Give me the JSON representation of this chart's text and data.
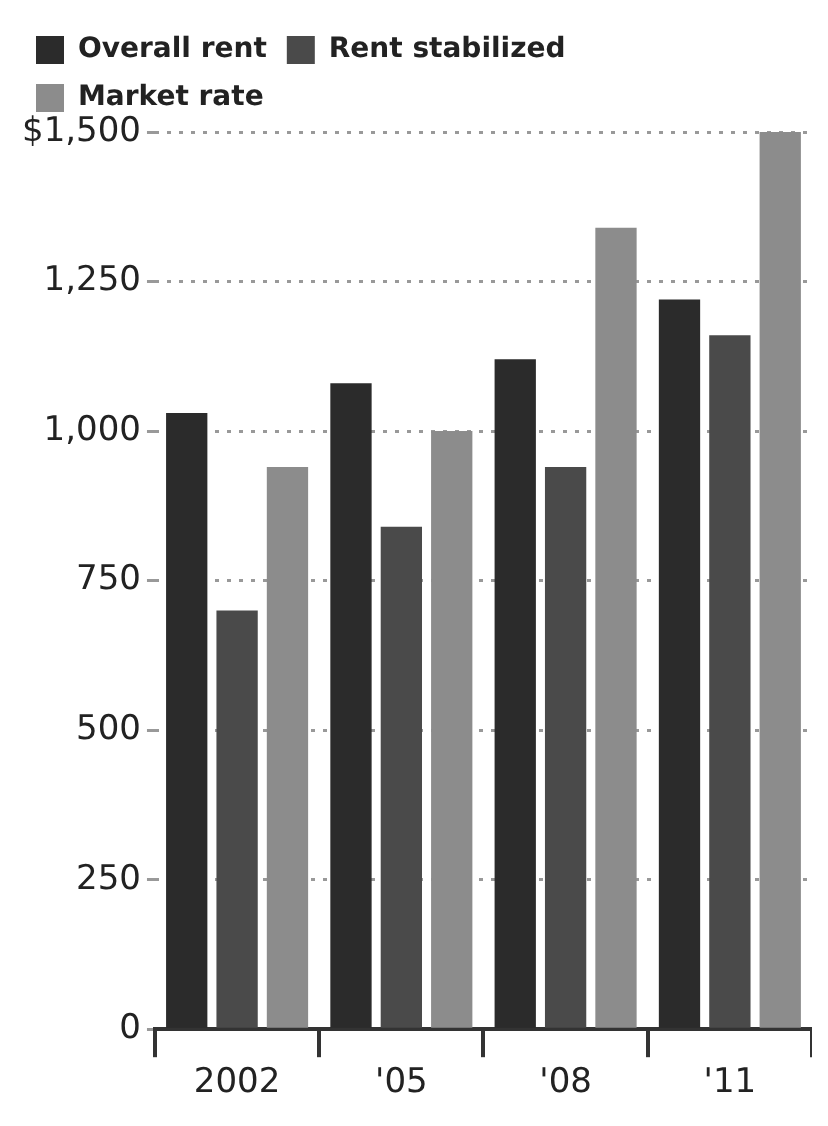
{
  "chart_data": {
    "type": "bar",
    "categories": [
      "2002",
      "'05",
      "'08",
      "'11"
    ],
    "series": [
      {
        "name": "Overall rent",
        "color": "#2b2b2b",
        "values": [
          1030,
          1080,
          1120,
          1220
        ]
      },
      {
        "name": "Rent stabilized",
        "color": "#4a4a4a",
        "values": [
          700,
          840,
          940,
          1160
        ]
      },
      {
        "name": "Market rate",
        "color": "#8c8c8c",
        "values": [
          940,
          1000,
          1340,
          1500
        ]
      }
    ],
    "ylim": [
      0,
      1500
    ],
    "yticks": [
      0,
      {
        "value": 250,
        "label": "250"
      },
      {
        "value": 500,
        "label": "500"
      },
      {
        "value": 750,
        "label": "750"
      },
      {
        "value": 1000,
        "label": "1,000"
      },
      {
        "value": 1250,
        "label": "1,250"
      },
      {
        "value": 1500,
        "label": "$1,500"
      }
    ],
    "grid": "y",
    "legend": "top"
  }
}
